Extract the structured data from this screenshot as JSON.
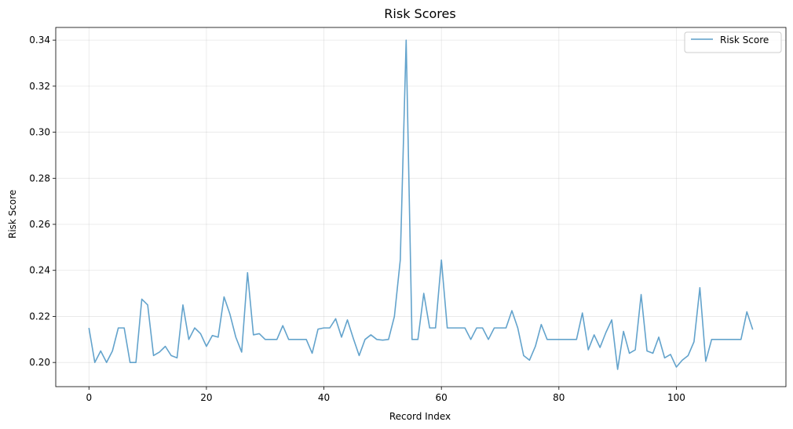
{
  "chart_data": {
    "type": "line",
    "title": "Risk Scores",
    "xlabel": "Record Index",
    "ylabel": "Risk Score",
    "xlim": [
      -5.65,
      118.65
    ],
    "ylim": [
      0.1895,
      0.3455
    ],
    "xticks": [
      0,
      20,
      40,
      60,
      80,
      100
    ],
    "yticks": [
      0.2,
      0.22,
      0.24,
      0.26,
      0.28,
      0.3,
      0.32,
      0.34
    ],
    "xtick_labels": [
      "0",
      "20",
      "40",
      "60",
      "80",
      "100"
    ],
    "ytick_labels": [
      "0.20",
      "0.22",
      "0.24",
      "0.26",
      "0.28",
      "0.30",
      "0.32",
      "0.34"
    ],
    "grid": true,
    "legend_position": "top-right",
    "series": [
      {
        "name": "Risk Score",
        "color": "#5b9ec9",
        "x": [
          0,
          1,
          2,
          3,
          4,
          5,
          6,
          7,
          8,
          9,
          10,
          11,
          12,
          13,
          14,
          15,
          16,
          17,
          18,
          19,
          20,
          21,
          22,
          23,
          24,
          25,
          26,
          27,
          28,
          29,
          30,
          31,
          32,
          33,
          34,
          35,
          36,
          37,
          38,
          39,
          40,
          41,
          42,
          43,
          44,
          45,
          46,
          47,
          48,
          49,
          50,
          51,
          52,
          53,
          54,
          55,
          56,
          57,
          58,
          59,
          60,
          61,
          62,
          63,
          64,
          65,
          66,
          67,
          68,
          69,
          70,
          71,
          72,
          73,
          74,
          75,
          76,
          77,
          78,
          79,
          80,
          81,
          82,
          83,
          84,
          85,
          86,
          87,
          88,
          89,
          90,
          91,
          92,
          93,
          94,
          95,
          96,
          97,
          98,
          99,
          100,
          101,
          102,
          103,
          104,
          105,
          106,
          107,
          108,
          109,
          110,
          111,
          112,
          113
        ],
        "values": [
          0.215,
          0.2,
          0.205,
          0.2,
          0.205,
          0.215,
          0.215,
          0.2,
          0.2,
          0.2275,
          0.225,
          0.203,
          0.2045,
          0.207,
          0.203,
          0.202,
          0.225,
          0.21,
          0.215,
          0.2125,
          0.207,
          0.2117,
          0.211,
          0.2285,
          0.221,
          0.211,
          0.2045,
          0.239,
          0.212,
          0.2125,
          0.21,
          0.21,
          0.21,
          0.216,
          0.21,
          0.21,
          0.21,
          0.21,
          0.204,
          0.2145,
          0.215,
          0.215,
          0.219,
          0.211,
          0.2185,
          0.2105,
          0.203,
          0.21,
          0.212,
          0.21,
          0.2097,
          0.21,
          0.22,
          0.2445,
          0.34,
          0.21,
          0.21,
          0.23,
          0.215,
          0.215,
          0.2445,
          0.215,
          0.215,
          0.215,
          0.215,
          0.21,
          0.215,
          0.215,
          0.21,
          0.215,
          0.215,
          0.215,
          0.2225,
          0.215,
          0.203,
          0.201,
          0.207,
          0.2165,
          0.21,
          0.21,
          0.21,
          0.21,
          0.21,
          0.21,
          0.2215,
          0.2055,
          0.212,
          0.2065,
          0.213,
          0.2185,
          0.197,
          0.2135,
          0.204,
          0.2055,
          0.2295,
          0.205,
          0.204,
          0.211,
          0.202,
          0.2035,
          0.198,
          0.201,
          0.203,
          0.209,
          0.2325,
          0.2005,
          0.21,
          0.21,
          0.21,
          0.21,
          0.21,
          0.21,
          0.222,
          0.2143
        ]
      }
    ]
  }
}
